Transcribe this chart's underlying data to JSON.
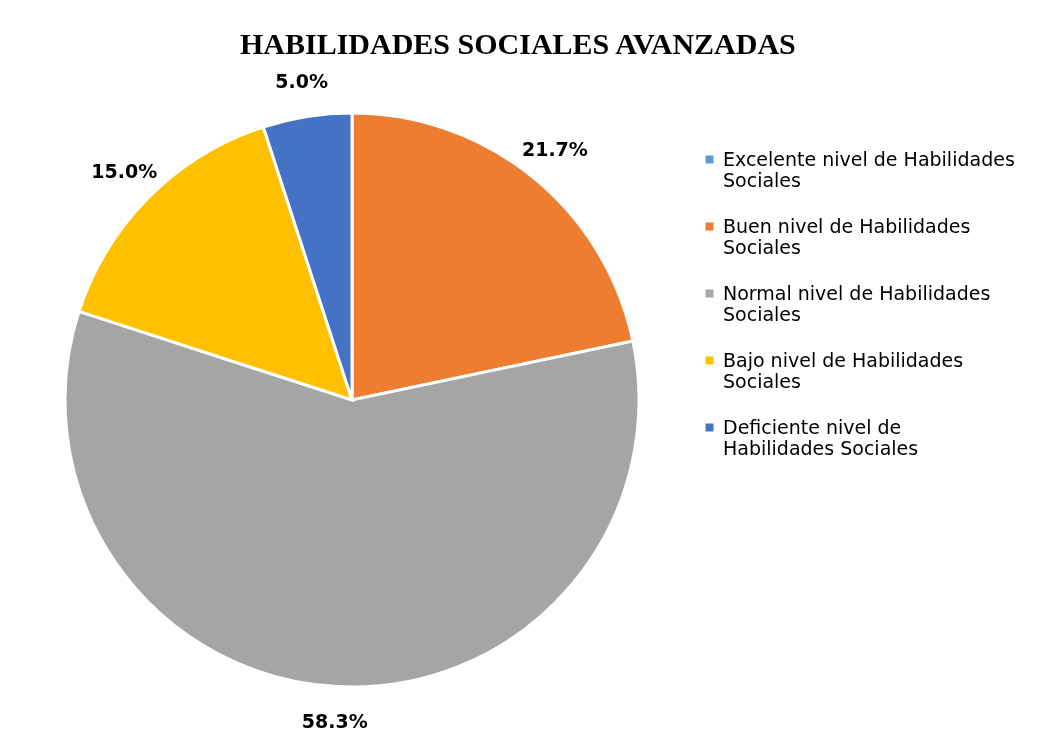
{
  "chart_data": {
    "type": "pie",
    "title": "HABILIDADES SOCIALES AVANZADAS",
    "categories": [
      "Excelente nivel de Habilidades Sociales",
      "Buen nivel de Habilidades Sociales",
      "Normal nivel de Habilidades Sociales",
      "Bajo nivel de Habilidades Sociales",
      "Deficiente nivel de Habilidades Sociales"
    ],
    "values": [
      0,
      21.7,
      58.3,
      15.0,
      5.0
    ],
    "colors": [
      "#5b9bd5",
      "#ed7d31",
      "#a5a5a5",
      "#ffc000",
      "#4472c4"
    ],
    "value_labels": [
      null,
      "21.7%",
      "58.3%",
      "15.0%",
      "5.0%"
    ],
    "legend": "right"
  }
}
